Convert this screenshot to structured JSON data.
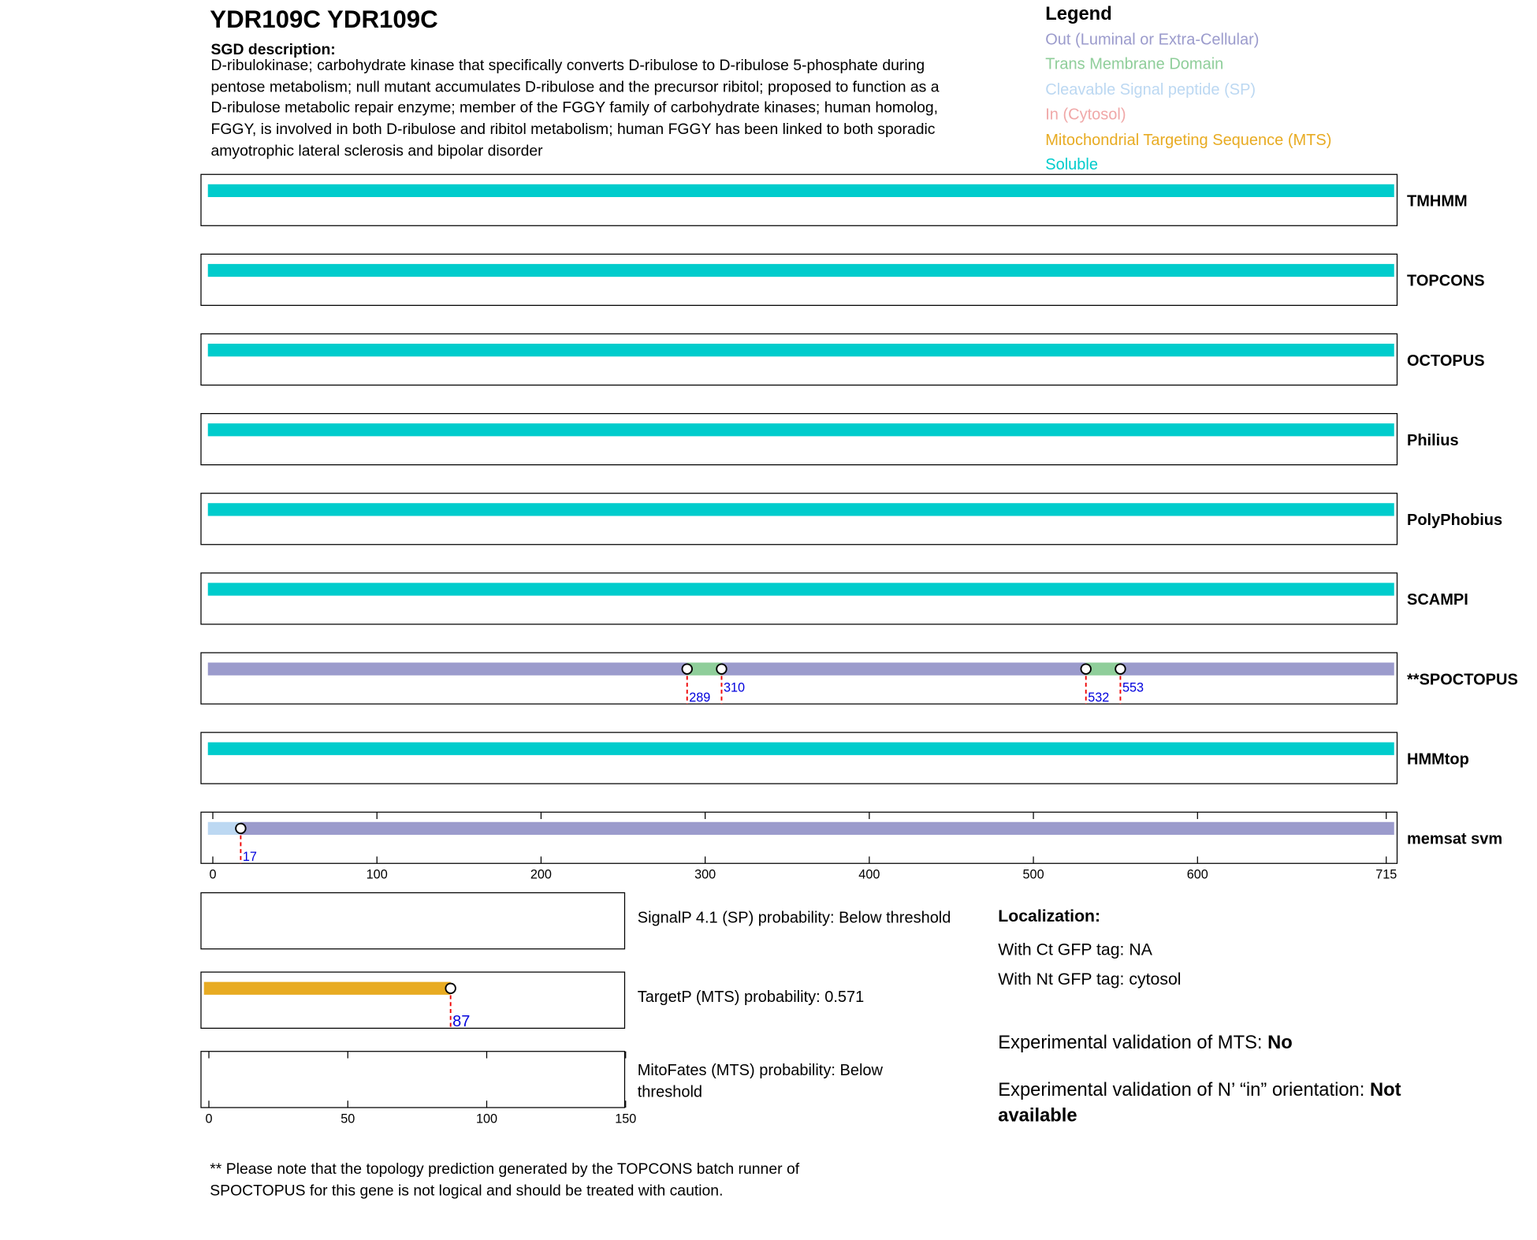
{
  "chart_data": {
    "type": "topology",
    "title": "YDR109C  YDR109C",
    "description_label": "SGD description:",
    "description": [
      "D-ribulokinase; carbohydrate kinase that specifically converts D-ribulose to D-ribulose 5-phosphate during",
      "pentose metabolism; null mutant accumulates D-ribulose and the precursor ribitol; proposed to function as a",
      "D-ribulose metabolic repair enzyme; member of the FGGY family of carbohydrate kinases; human homolog,",
      "FGGY, is involved in both D-ribulose and ribitol metabolism; human FGGY has been linked to both sporadic",
      "amyotrophic lateral sclerosis and bipolar disorder"
    ],
    "legend_title": "Legend",
    "legend": [
      {
        "name": "Out (Luminal or Extra-Cellular)",
        "color": "#9b9bcc"
      },
      {
        "name": "Trans Membrane Domain",
        "color": "#8fce9a"
      },
      {
        "name": "Cleavable Signal peptide (SP)",
        "color": "#bcd8f2"
      },
      {
        "name": "In (Cytosol)",
        "color": "#f0a8a8"
      },
      {
        "name": "Mitochondrial Targeting Sequence (MTS)",
        "color": "#e8ab22"
      },
      {
        "name": "Soluble",
        "color": "#00cccc"
      }
    ],
    "xlim": [
      0,
      715
    ],
    "xticks": [
      0,
      100,
      200,
      300,
      400,
      500,
      600,
      715
    ],
    "tracks": [
      {
        "name": "TMHMM",
        "segments": [
          {
            "start": 0,
            "end": 715,
            "color": "#00cccc"
          }
        ],
        "markers": []
      },
      {
        "name": "TOPCONS",
        "segments": [
          {
            "start": 0,
            "end": 715,
            "color": "#00cccc"
          }
        ],
        "markers": []
      },
      {
        "name": "OCTOPUS",
        "segments": [
          {
            "start": 0,
            "end": 715,
            "color": "#00cccc"
          }
        ],
        "markers": []
      },
      {
        "name": "Philius",
        "segments": [
          {
            "start": 0,
            "end": 715,
            "color": "#00cccc"
          }
        ],
        "markers": []
      },
      {
        "name": "PolyPhobius",
        "segments": [
          {
            "start": 0,
            "end": 715,
            "color": "#00cccc"
          }
        ],
        "markers": []
      },
      {
        "name": "SCAMPI",
        "segments": [
          {
            "start": 0,
            "end": 715,
            "color": "#00cccc"
          }
        ],
        "markers": []
      },
      {
        "name": "**SPOCTOPUS",
        "segments": [
          {
            "start": 0,
            "end": 289,
            "color": "#9b9bcc"
          },
          {
            "start": 289,
            "end": 310,
            "color": "#8fce9a"
          },
          {
            "start": 310,
            "end": 532,
            "color": "#9b9bcc"
          },
          {
            "start": 532,
            "end": 553,
            "color": "#8fce9a"
          },
          {
            "start": 553,
            "end": 715,
            "color": "#9b9bcc"
          }
        ],
        "markers": [
          289,
          310,
          532,
          553
        ]
      },
      {
        "name": "HMMtop",
        "segments": [
          {
            "start": 0,
            "end": 715,
            "color": "#00cccc"
          }
        ],
        "markers": []
      },
      {
        "name": "memsat svm",
        "segments": [
          {
            "start": 0,
            "end": 17,
            "color": "#bcd8f2"
          },
          {
            "start": 17,
            "end": 715,
            "color": "#9b9bcc"
          }
        ],
        "markers": [
          17
        ]
      }
    ],
    "predictors": {
      "xlim": [
        0,
        150
      ],
      "xticks": [
        0,
        50,
        100,
        150
      ],
      "panels": [
        {
          "label": [
            "SignalP 4.1 (SP) probability: Below threshold"
          ],
          "segments": [],
          "markers": []
        },
        {
          "label": [
            "TargetP (MTS) probability: 0.571"
          ],
          "segments": [
            {
              "start": 0,
              "end": 87,
              "color": "#e8ab22"
            }
          ],
          "markers": [
            87
          ]
        },
        {
          "label": [
            "MitoFates (MTS) probability: Below",
            "threshold"
          ],
          "segments": [],
          "markers": []
        }
      ]
    },
    "localization": {
      "heading": "Localization:",
      "lines": [
        "With Ct GFP tag: NA",
        "With Nt GFP tag: cytosol"
      ]
    },
    "validation": [
      {
        "label": "Experimental validation of MTS:",
        "value": "No"
      },
      {
        "label": "Experimental validation of N’ “in” orientation:",
        "value": "Not available"
      }
    ],
    "footnote": [
      "** Please note that the topology prediction generated by the TOPCONS batch runner of",
      "SPOCTOPUS for this gene is not logical and should be treated with caution."
    ]
  }
}
